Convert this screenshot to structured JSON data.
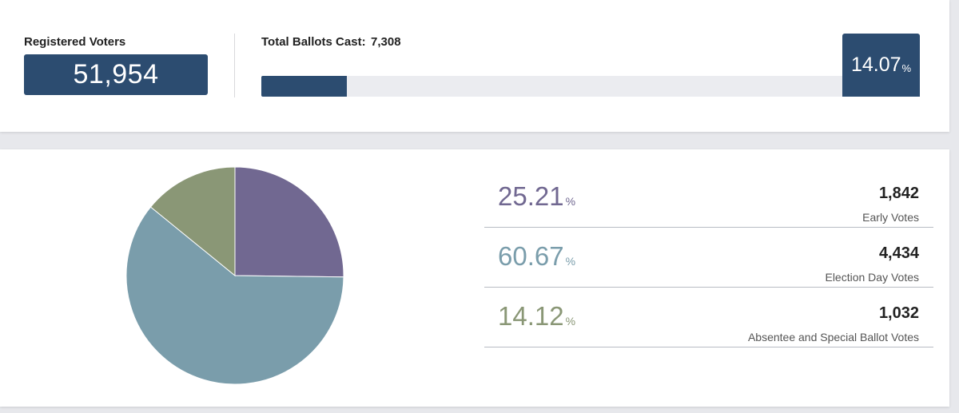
{
  "registered": {
    "label": "Registered Voters",
    "value": "51,954"
  },
  "ballots": {
    "label": "Total Ballots Cast:",
    "value": "7,308",
    "turnout_percent": 14.07,
    "turnout_number": "14.07",
    "percent_unit": "%"
  },
  "colors": {
    "navy": "#2c4c70",
    "early": "#716891",
    "election_day": "#7a9dab",
    "absentee": "#8a9776"
  },
  "breakdown": [
    {
      "percent": "25.21",
      "unit": "%",
      "count": "1,842",
      "label": "Early Votes"
    },
    {
      "percent": "60.67",
      "unit": "%",
      "count": "4,434",
      "label": "Election Day Votes"
    },
    {
      "percent": "14.12",
      "unit": "%",
      "count": "1,032",
      "label": "Absentee and Special Ballot Votes"
    }
  ],
  "chart_data": {
    "type": "pie",
    "categories": [
      "Early Votes",
      "Election Day Votes",
      "Absentee and Special Ballot Votes"
    ],
    "values": [
      25.21,
      60.67,
      14.12
    ],
    "colors": [
      "#716891",
      "#7a9dab",
      "#8a9776"
    ]
  }
}
